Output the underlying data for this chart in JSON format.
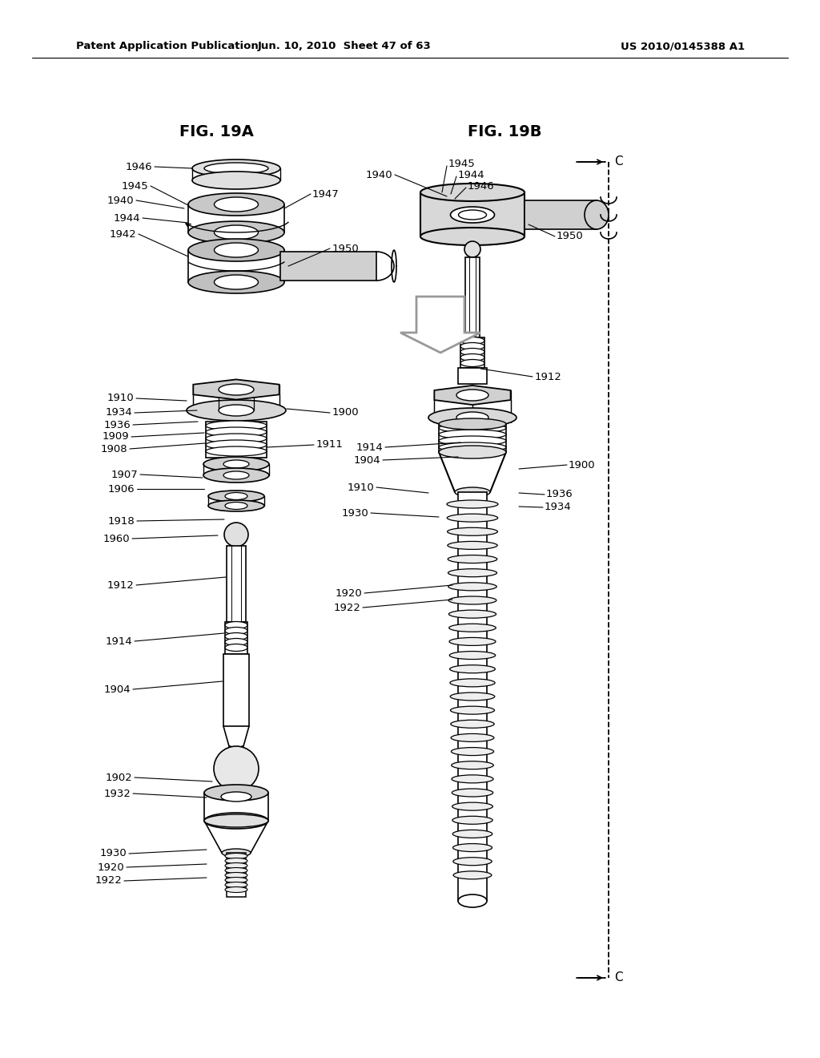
{
  "header_left": "Patent Application Publication",
  "header_center": "Jun. 10, 2010  Sheet 47 of 63",
  "header_right": "US 2010/0145388 A1",
  "fig_a_title": "FIG. 19A",
  "fig_b_title": "FIG. 19B",
  "bg_color": "#ffffff"
}
